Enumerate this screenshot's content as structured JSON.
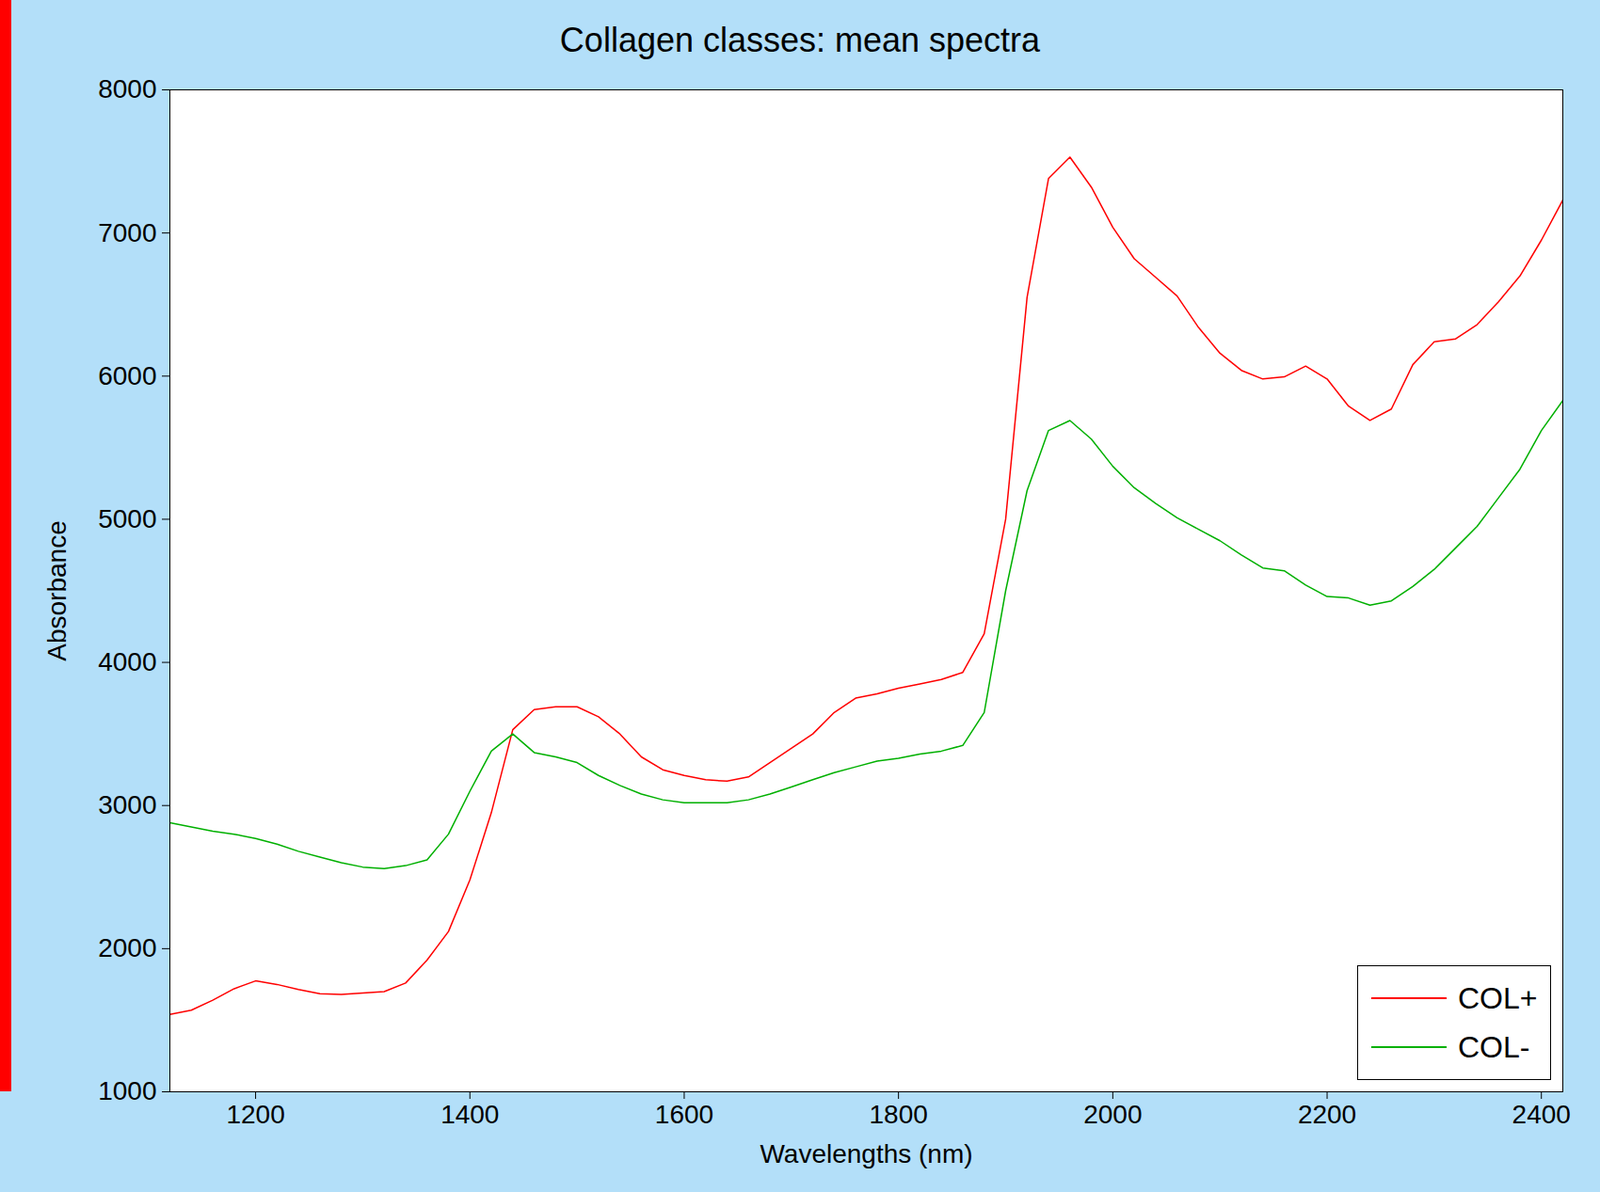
{
  "chart_data": {
    "type": "line",
    "title": "Collagen classes: mean spectra",
    "x_label": "Wavelengths (nm)",
    "y_label": "Absorbance",
    "x": [
      1120,
      1140,
      1160,
      1180,
      1200,
      1220,
      1240,
      1260,
      1280,
      1300,
      1320,
      1340,
      1360,
      1380,
      1400,
      1420,
      1440,
      1460,
      1480,
      1500,
      1520,
      1540,
      1560,
      1580,
      1600,
      1620,
      1640,
      1660,
      1680,
      1700,
      1720,
      1740,
      1760,
      1780,
      1800,
      1820,
      1840,
      1860,
      1880,
      1900,
      1920,
      1940,
      1960,
      1980,
      2000,
      2020,
      2040,
      2060,
      2080,
      2100,
      2120,
      2140,
      2160,
      2180,
      2200,
      2220,
      2240,
      2260,
      2280,
      2300,
      2320,
      2340,
      2360,
      2380,
      2400,
      2420
    ],
    "series": [
      {
        "name": "COL+",
        "color": "#ff0000",
        "values": [
          1540,
          1570,
          1640,
          1720,
          1775,
          1750,
          1715,
          1685,
          1680,
          1690,
          1700,
          1760,
          1920,
          2120,
          2480,
          2950,
          3530,
          3670,
          3690,
          3690,
          3620,
          3500,
          3340,
          3250,
          3210,
          3180,
          3170,
          3200,
          3300,
          3400,
          3500,
          3650,
          3750,
          3780,
          3820,
          3850,
          3880,
          3930,
          4200,
          5000,
          6550,
          7380,
          7530,
          7320,
          7040,
          6820,
          6690,
          6560,
          6340,
          6160,
          6040,
          5980,
          5995,
          6070,
          5980,
          5790,
          5690,
          5770,
          6080,
          6240,
          6260,
          6360,
          6520,
          6700,
          6950,
          7230
        ]
      },
      {
        "name": "COL-",
        "color": "#00b000",
        "values": [
          2880,
          2850,
          2820,
          2800,
          2770,
          2730,
          2680,
          2640,
          2600,
          2570,
          2560,
          2580,
          2620,
          2800,
          3100,
          3380,
          3500,
          3370,
          3340,
          3300,
          3210,
          3140,
          3080,
          3040,
          3020,
          3020,
          3020,
          3040,
          3080,
          3130,
          3180,
          3230,
          3270,
          3310,
          3330,
          3360,
          3380,
          3420,
          3650,
          4500,
          5200,
          5620,
          5690,
          5560,
          5370,
          5220,
          5110,
          5010,
          4930,
          4850,
          4750,
          4660,
          4640,
          4540,
          4460,
          4450,
          4400,
          4430,
          4530,
          4650,
          4800,
          4950,
          5150,
          5350,
          5620,
          5830
        ]
      }
    ],
    "xlim": [
      1120,
      2420
    ],
    "xticks": [
      1200,
      1400,
      1600,
      1800,
      2000,
      2200,
      2400
    ],
    "ylim": [
      1000,
      8000
    ],
    "yticks": [
      1000,
      2000,
      3000,
      4000,
      5000,
      6000,
      7000,
      8000
    ],
    "grid": false,
    "legend": "lower right"
  }
}
